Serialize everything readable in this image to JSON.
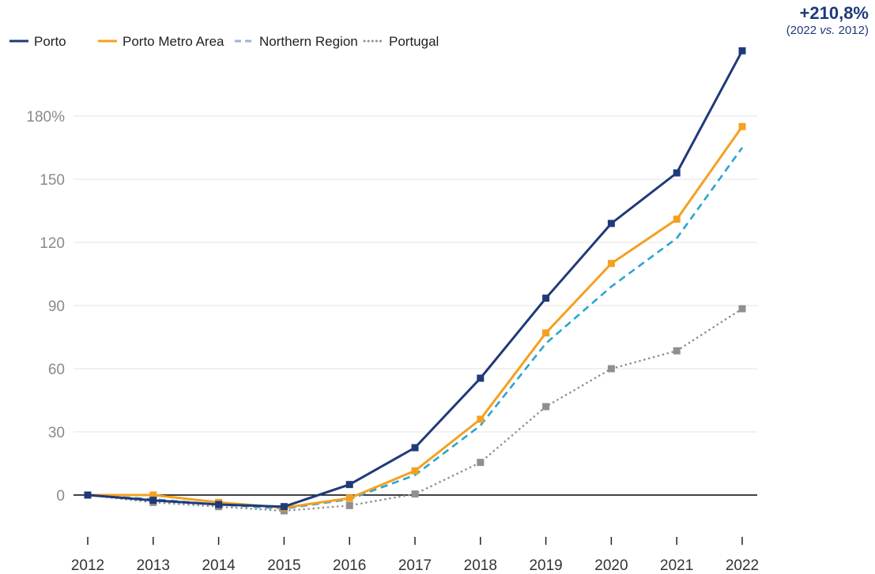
{
  "callout": {
    "value": "+210,8%",
    "year_a": "2022",
    "vs": "vs.",
    "year_b": "2012"
  },
  "chart_data": {
    "type": "line",
    "x": [
      "2012",
      "2013",
      "2014",
      "2015",
      "2016",
      "2017",
      "2018",
      "2019",
      "2020",
      "2021",
      "2022"
    ],
    "ylim": [
      -15,
      210
    ],
    "yticks": [
      0,
      30,
      60,
      90,
      120,
      150,
      180
    ],
    "ytick_labels": [
      "0",
      "30",
      "60",
      "90",
      "120",
      "150",
      "180%"
    ],
    "grid": true,
    "legend_position": "top-left",
    "series": [
      {
        "name": "Porto",
        "color": "#1f3a7a",
        "dash": "solid",
        "markers": true,
        "values": [
          0,
          -2.5,
          -4.5,
          -5.5,
          5,
          22.5,
          55.5,
          93.5,
          129,
          153,
          211
        ]
      },
      {
        "name": "Porto Metro Area",
        "color": "#f5a020",
        "dash": "solid",
        "markers": true,
        "values": [
          0,
          0,
          -3.5,
          -6,
          -1.5,
          11.5,
          36,
          77,
          110,
          131,
          175
        ]
      },
      {
        "name": "Northern Region",
        "color": "#2aa5d1",
        "legend_color": "#9db0e0",
        "dash": "dashed",
        "markers": false,
        "values": [
          0,
          -2,
          -4.5,
          -6.5,
          -2,
          9.5,
          33,
          72,
          99,
          122,
          165
        ]
      },
      {
        "name": "Portugal",
        "color": "#8f8f8f",
        "dash": "dotted",
        "markers": true,
        "values": [
          0,
          -3.5,
          -5.5,
          -7.5,
          -5,
          0.5,
          15.5,
          42,
          60,
          68.5,
          88.5
        ]
      }
    ]
  }
}
